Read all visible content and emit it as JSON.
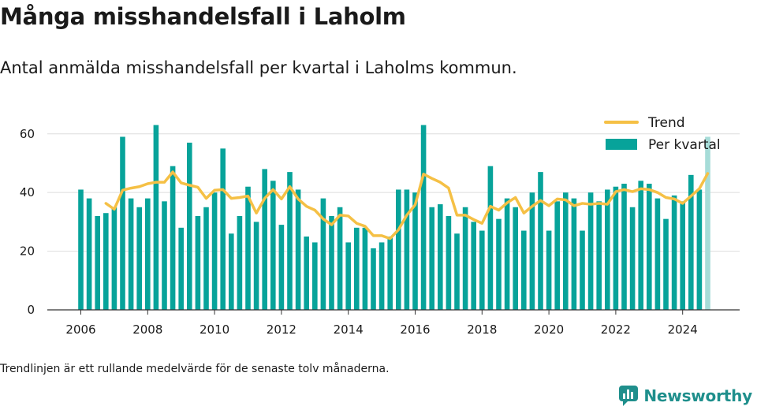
{
  "header": {
    "title": "Många misshandelsfall i Laholm",
    "subtitle": "Antal anmälda misshandelsfall per kvartal i Laholms kommun."
  },
  "footnote": "Trendlinjen är ett rullande medelvärde för de senaste tolv månaderna.",
  "brand": {
    "name": "Newsworthy",
    "icon": "newsworthy-logo-icon"
  },
  "colors": {
    "bar": "#07a39a",
    "bar_last": "#a6dcd8",
    "trend": "#f5c045",
    "grid": "#dddddd",
    "axis": "#333333"
  },
  "chart_data": {
    "type": "bar",
    "x_start": "2006 Q1",
    "categories": [
      "2006 Q1",
      "2006 Q2",
      "2006 Q3",
      "2006 Q4",
      "2007 Q1",
      "2007 Q2",
      "2007 Q3",
      "2007 Q4",
      "2008 Q1",
      "2008 Q2",
      "2008 Q3",
      "2008 Q4",
      "2009 Q1",
      "2009 Q2",
      "2009 Q3",
      "2009 Q4",
      "2010 Q1",
      "2010 Q2",
      "2010 Q3",
      "2010 Q4",
      "2011 Q1",
      "2011 Q2",
      "2011 Q3",
      "2011 Q4",
      "2012 Q1",
      "2012 Q2",
      "2012 Q3",
      "2012 Q4",
      "2013 Q1",
      "2013 Q2",
      "2013 Q3",
      "2013 Q4",
      "2014 Q1",
      "2014 Q2",
      "2014 Q3",
      "2014 Q4",
      "2015 Q1",
      "2015 Q2",
      "2015 Q3",
      "2015 Q4",
      "2016 Q1",
      "2016 Q2",
      "2016 Q3",
      "2016 Q4",
      "2017 Q1",
      "2017 Q2",
      "2017 Q3",
      "2017 Q4",
      "2018 Q1",
      "2018 Q2",
      "2018 Q3",
      "2018 Q4",
      "2019 Q1",
      "2019 Q2",
      "2019 Q3",
      "2019 Q4",
      "2020 Q1",
      "2020 Q2",
      "2020 Q3",
      "2020 Q4",
      "2021 Q1",
      "2021 Q2",
      "2021 Q3",
      "2021 Q4",
      "2022 Q1",
      "2022 Q2",
      "2022 Q3",
      "2022 Q4",
      "2023 Q1",
      "2023 Q2",
      "2023 Q3",
      "2023 Q4",
      "2024 Q1",
      "2024 Q2",
      "2024 Q3",
      "2024 Q4"
    ],
    "series": [
      {
        "name": "Per kvartal",
        "values": [
          41,
          38,
          32,
          33,
          35,
          59,
          38,
          35,
          38,
          63,
          37,
          49,
          28,
          57,
          32,
          35,
          40,
          55,
          26,
          32,
          42,
          30,
          48,
          44,
          29,
          47,
          41,
          25,
          23,
          38,
          32,
          35,
          23,
          28,
          28,
          21,
          23,
          25,
          41,
          41,
          40,
          63,
          35,
          36,
          32,
          26,
          35,
          30,
          27,
          49,
          31,
          38,
          35,
          27,
          40,
          47,
          27,
          37,
          40,
          38,
          27,
          40,
          37,
          41,
          42,
          43,
          35,
          44,
          43,
          38,
          31,
          39,
          37,
          46,
          41,
          59
        ]
      },
      {
        "name": "Trend",
        "values": [
          null,
          null,
          null,
          36.3,
          34.3,
          40.8,
          41.5,
          42,
          43,
          43.5,
          43.5,
          47,
          43.3,
          42.5,
          41.8,
          38,
          40.8,
          41,
          38,
          38.3,
          38.8,
          33,
          38,
          41,
          37.8,
          42,
          37.8,
          35.3,
          34,
          31,
          29,
          32.3,
          32,
          29.5,
          28.5,
          25.3,
          25.3,
          24.3,
          27.3,
          32.3,
          35.8,
          46.3,
          44.8,
          43.5,
          41.5,
          32.3,
          32.3,
          30.8,
          29.5,
          35.3,
          34,
          36.5,
          38.3,
          33,
          35.3,
          37.3,
          35.5,
          37.8,
          37.5,
          35.5,
          36.3,
          36,
          36.3,
          36,
          40.3,
          41,
          40.3,
          41.3,
          41,
          40,
          38.3,
          37.8,
          36.3,
          38.8,
          41.3,
          46.5
        ]
      }
    ],
    "ylim": [
      0,
      68
    ],
    "yticks": [
      0,
      20,
      40,
      60
    ],
    "xticks": [
      "2006",
      "2008",
      "2010",
      "2012",
      "2014",
      "2016",
      "2018",
      "2020",
      "2022",
      "2024"
    ],
    "grid": true,
    "legend": {
      "position": "top-right",
      "entries": [
        "Trend",
        "Per kvartal"
      ]
    }
  }
}
